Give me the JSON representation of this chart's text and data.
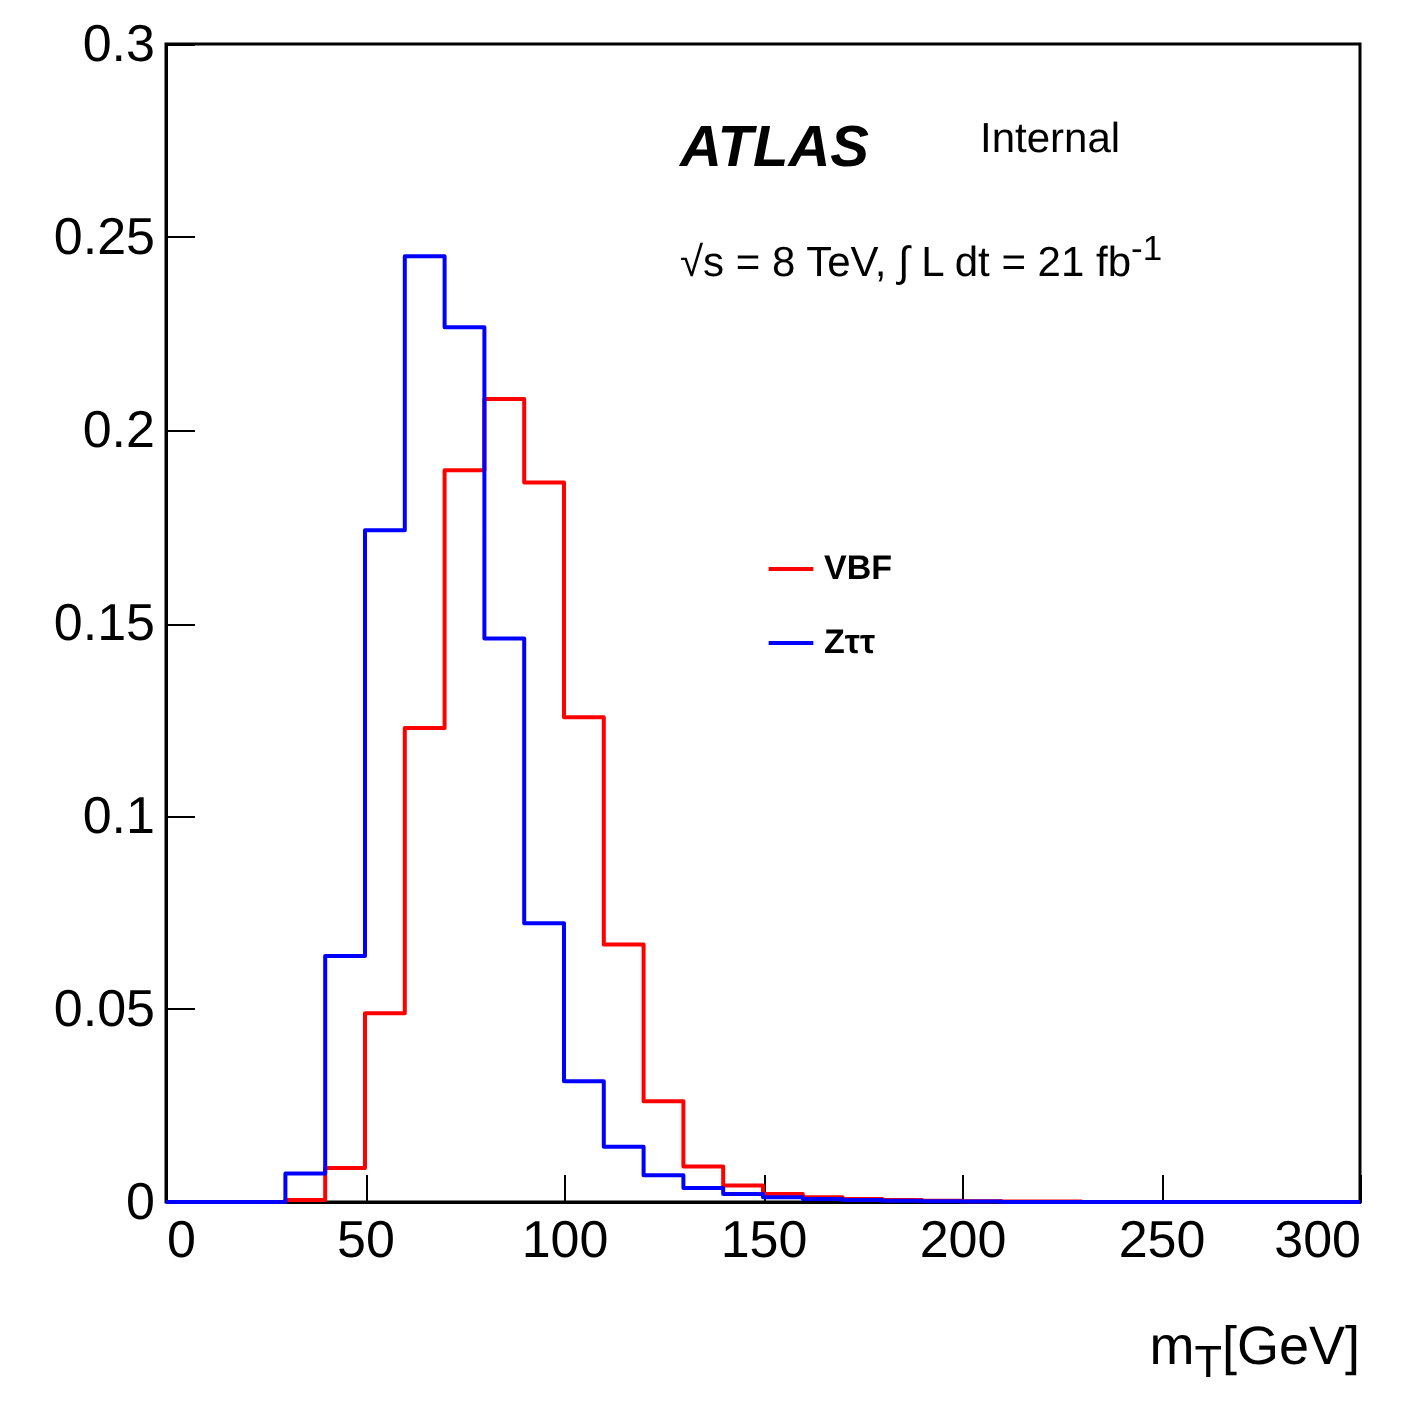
{
  "chart_data": {
    "type": "histogram",
    "xlabel": "m$_{T}$[GeV]",
    "bins": [
      0,
      10,
      20,
      30,
      40,
      50,
      60,
      70,
      80,
      90,
      100,
      110,
      120,
      130,
      140,
      150,
      160,
      170,
      180,
      190,
      200,
      210,
      220,
      230,
      240,
      250,
      260,
      270,
      280,
      290,
      300
    ],
    "series": [
      {
        "name": "VBF",
        "color": "#ff0000",
        "values": [
          0,
          0,
          0,
          0.0005,
          0.0088,
          0.0489,
          0.1228,
          0.1896,
          0.208,
          0.1864,
          0.1256,
          0.0667,
          0.0261,
          0.0092,
          0.0043,
          0.0021,
          0.0012,
          0.0008,
          0.0005,
          0.0003,
          0.0002,
          0.0001,
          0.0001,
          0,
          0,
          0,
          0,
          0,
          0,
          0
        ]
      },
      {
        "name": "Zττ",
        "color": "#0000ff",
        "values": [
          0,
          0,
          0,
          0.0074,
          0.0637,
          0.174,
          0.245,
          0.2266,
          0.146,
          0.0722,
          0.0313,
          0.0143,
          0.0069,
          0.0036,
          0.0021,
          0.0012,
          0.0008,
          0.0005,
          0.0003,
          0.0002,
          0.0001,
          0,
          0,
          0,
          0,
          0,
          0,
          0,
          0,
          0
        ]
      }
    ],
    "xlim": [
      0,
      300
    ],
    "xticks": [
      0,
      50,
      100,
      150,
      200,
      250,
      300
    ],
    "ylim": [
      0,
      0.3
    ],
    "yticks": [
      0,
      0.05,
      0.1,
      0.15,
      0.2,
      0.25,
      0.3
    ],
    "grid": false,
    "legend": "right",
    "annotations": [
      "ATLAS",
      "Internal",
      "√s = 8 TeV, ∫ L dt = 21 fb$^{-1}$"
    ]
  }
}
